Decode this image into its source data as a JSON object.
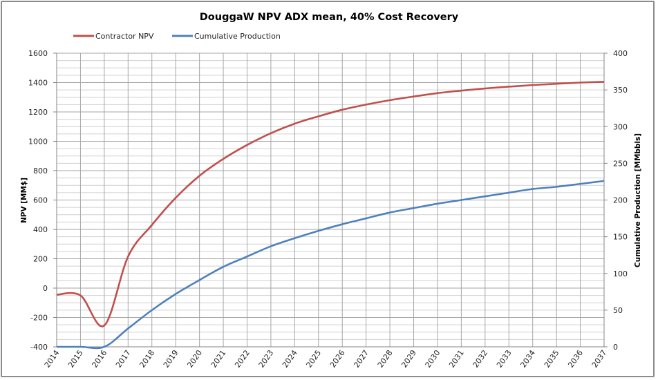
{
  "chart_data": {
    "type": "line",
    "title": "DouggaW NPV ADX mean, 40% Cost Recovery",
    "xlabel": "",
    "ylabel": "NPV [MM$]",
    "y2label": "Cumulative Production [MMbbls]",
    "ylim": [
      -400,
      1600
    ],
    "y2lim": [
      0,
      400
    ],
    "grid": true,
    "legend_position": "top-left",
    "x": [
      2014,
      2015,
      2016,
      2017,
      2018,
      2019,
      2020,
      2021,
      2022,
      2023,
      2024,
      2025,
      2026,
      2027,
      2028,
      2029,
      2030,
      2031,
      2032,
      2033,
      2034,
      2035,
      2036,
      2037
    ],
    "categories": [
      "2014",
      "2015",
      "2016",
      "2017",
      "2018",
      "2019",
      "2020",
      "2021",
      "2022",
      "2023",
      "2024",
      "2025",
      "2026",
      "2027",
      "2028",
      "2029",
      "2030",
      "2031",
      "2032",
      "2033",
      "2034",
      "2035",
      "2036",
      "2037"
    ],
    "yticks": [
      "-400",
      "-200",
      "0",
      "200",
      "400",
      "600",
      "800",
      "1000",
      "1200",
      "1400",
      "1600"
    ],
    "y2ticks": [
      "0",
      "50",
      "100",
      "150",
      "200",
      "250",
      "300",
      "350",
      "400"
    ],
    "series": [
      {
        "name": "Contractor NPV",
        "axis": "left",
        "color": "#c0504d",
        "values": [
          -45,
          -50,
          -255,
          215,
          430,
          615,
          765,
          880,
          975,
          1055,
          1120,
          1170,
          1215,
          1250,
          1280,
          1305,
          1328,
          1345,
          1360,
          1372,
          1383,
          1392,
          1400,
          1405
        ]
      },
      {
        "name": "Cumulative Production",
        "axis": "right",
        "color": "#4f81bd",
        "values": [
          0,
          0,
          0,
          25,
          50,
          72,
          91,
          109,
          123,
          137,
          148,
          158,
          167,
          175,
          183,
          189,
          195,
          200,
          205,
          210,
          215,
          218,
          222,
          226
        ]
      }
    ]
  }
}
